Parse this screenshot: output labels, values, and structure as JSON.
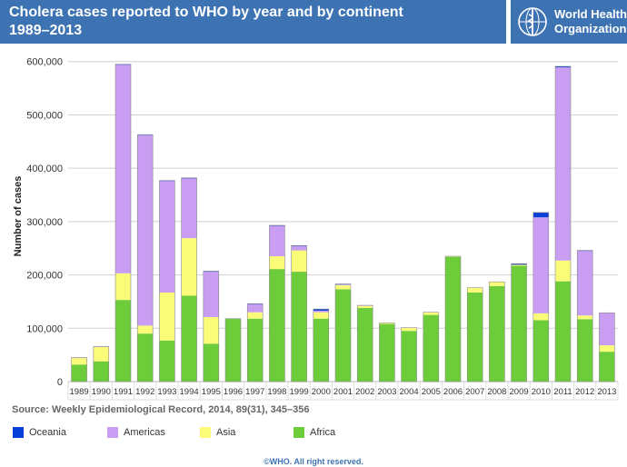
{
  "header": {
    "title_line1": "Cholera cases reported to WHO by year and by continent",
    "title_line2": "1989–2013",
    "logo_line1": "World Health",
    "logo_line2": "Organization"
  },
  "source_text": "Source: Weekly Epidemiological Record, 2014, 89(31), 345–356",
  "copyright": "©WHO. All right reserved.",
  "colors": {
    "header_bg": "#3d73b3",
    "Oceania": "#0a3fd8",
    "Americas": "#c89df2",
    "Asia": "#fbfb7a",
    "Africa": "#6dcc3a"
  },
  "chart_data": {
    "type": "bar",
    "stacked": true,
    "ylabel": "Number of cases",
    "xlabel": "",
    "ylim": [
      0,
      620000
    ],
    "yticks": [
      0,
      100000,
      200000,
      300000,
      400000,
      500000,
      600000
    ],
    "ytick_labels": [
      "0",
      "100,000",
      "200,000",
      "300,000",
      "400,000",
      "500,000",
      "600,000"
    ],
    "grid": true,
    "legend_position": "bottom",
    "categories": [
      "1989",
      "1990",
      "1991",
      "1992",
      "1993",
      "1994",
      "1995",
      "1996",
      "1997",
      "1998",
      "1999",
      "2000",
      "2001",
      "2002",
      "2003",
      "2004",
      "2005",
      "2006",
      "2007",
      "2008",
      "2009",
      "2010",
      "2011",
      "2012",
      "2013"
    ],
    "series": [
      {
        "name": "Africa",
        "values": [
          32000,
          38000,
          153000,
          90000,
          77000,
          161000,
          71000,
          118000,
          118000,
          211000,
          206000,
          118000,
          173000,
          138000,
          108000,
          95000,
          125000,
          234000,
          167000,
          179000,
          217000,
          115000,
          188000,
          117000,
          56000
        ]
      },
      {
        "name": "Asia",
        "values": [
          12000,
          27000,
          50000,
          15000,
          90000,
          108000,
          50000,
          0,
          12000,
          24000,
          40000,
          12000,
          8000,
          4000,
          2000,
          6000,
          5000,
          1000,
          9000,
          8000,
          2000,
          13000,
          39000,
          7000,
          12000
        ]
      },
      {
        "name": "Americas",
        "values": [
          1000,
          1000,
          391000,
          357000,
          209000,
          112000,
          85000,
          0,
          15000,
          57000,
          8000,
          3000,
          1000,
          1000,
          0,
          0,
          0,
          0,
          0,
          0,
          0,
          180000,
          362000,
          121000,
          61000
        ]
      },
      {
        "name": "Oceania",
        "values": [
          0,
          0,
          1000,
          1000,
          1000,
          1000,
          1000,
          0,
          1000,
          1000,
          1000,
          3000,
          1000,
          0,
          0,
          0,
          0,
          0,
          0,
          0,
          2000,
          9000,
          2000,
          1000,
          0
        ]
      }
    ]
  },
  "legend": [
    {
      "label": "Oceania",
      "color": "#0a3fd8"
    },
    {
      "label": "Americas",
      "color": "#c89df2"
    },
    {
      "label": "Asia",
      "color": "#fbfb7a"
    },
    {
      "label": "Africa",
      "color": "#6dcc3a"
    }
  ]
}
